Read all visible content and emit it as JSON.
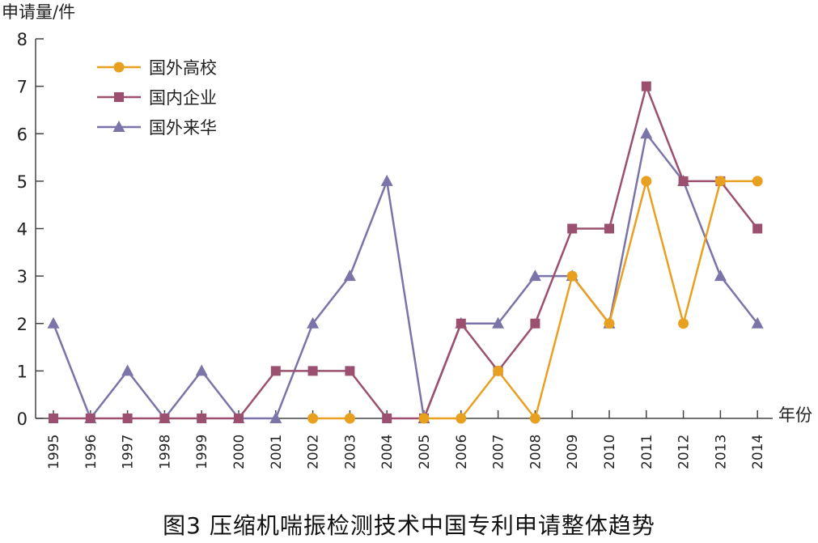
{
  "caption": "图3 压缩机喘振检测技术中国专利申请整体趋势",
  "chart_data": {
    "type": "line",
    "ylabel": "申请量/件",
    "xlabel": "年份",
    "ylim": [
      0,
      8
    ],
    "y_ticks": [
      0,
      1,
      2,
      3,
      4,
      5,
      6,
      7,
      8
    ],
    "grid": false,
    "legend_position": "top-left",
    "x": [
      "1995",
      "1996",
      "1997",
      "1998",
      "1999",
      "2000",
      "2001",
      "2002",
      "2003",
      "2004",
      "2005",
      "2006",
      "2007",
      "2008",
      "2009",
      "2010",
      "2011",
      "2012",
      "2013",
      "2014"
    ],
    "series": [
      {
        "name": "国外高校",
        "color": "#e8a020",
        "marker": "circle",
        "values": [
          null,
          null,
          null,
          null,
          null,
          null,
          null,
          0,
          0,
          null,
          0,
          0,
          1,
          0,
          3,
          2,
          5,
          2,
          5,
          5
        ]
      },
      {
        "name": "国内企业",
        "color": "#9b5070",
        "marker": "square",
        "values": [
          0,
          0,
          0,
          0,
          0,
          0,
          1,
          1,
          1,
          0,
          0,
          2,
          1,
          2,
          4,
          4,
          7,
          5,
          5,
          4
        ]
      },
      {
        "name": "国外来华",
        "color": "#7a74a8",
        "marker": "triangle",
        "values": [
          2,
          0,
          1,
          0,
          1,
          0,
          0,
          2,
          3,
          5,
          0,
          2,
          2,
          3,
          3,
          2,
          6,
          5,
          3,
          2
        ]
      }
    ]
  }
}
